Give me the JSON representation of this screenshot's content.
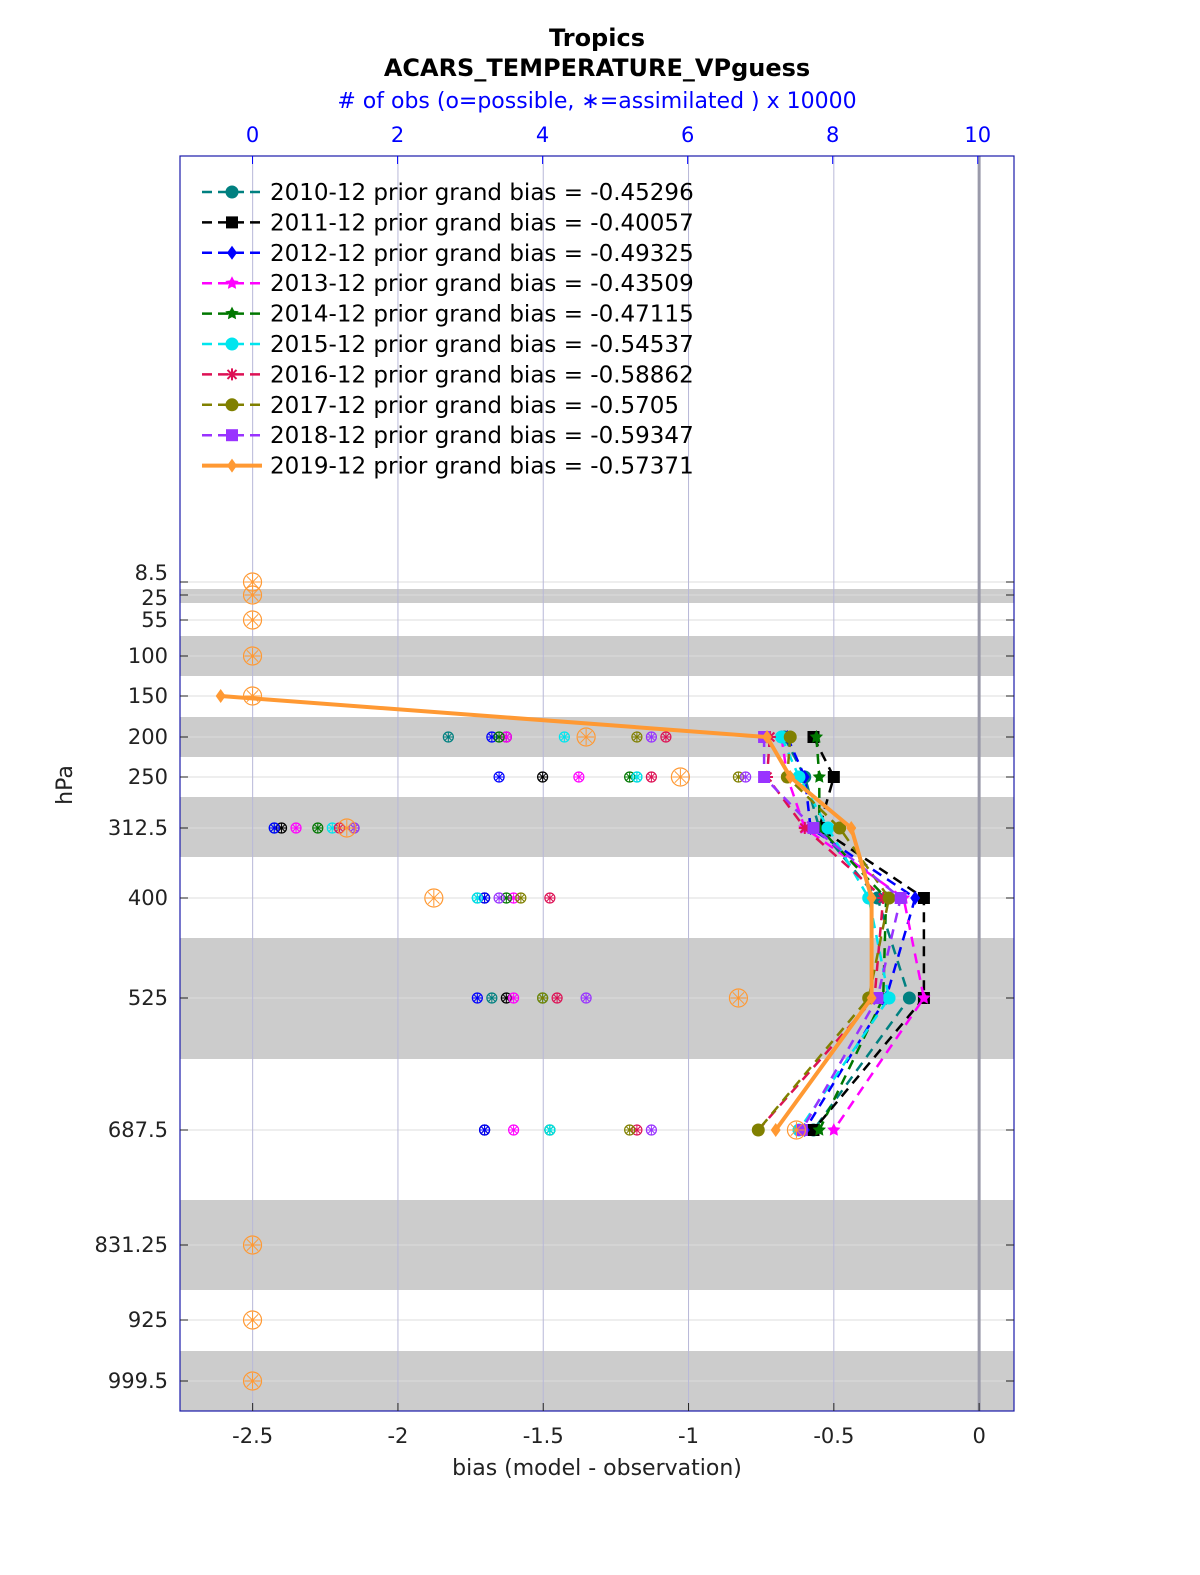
{
  "chart_data": {
    "type": "line",
    "title": "Tropics",
    "subtitle": "ACARS_TEMPERATURE_VPguess",
    "top_axis_label": "# of obs (o=possible, ∗=assimilated ) x 10000",
    "xlabel": "bias (model - observation)",
    "ylabel": "hPa",
    "xlim": [
      -2.75,
      0.12
    ],
    "x_ticks": [
      "-2.5",
      "-2",
      "-1.5",
      "-1",
      "-0.5",
      "0"
    ],
    "x_tick_values": [
      -2.5,
      -2,
      -1.5,
      -1,
      -0.5,
      0
    ],
    "top_xlim": [
      -1,
      10.5
    ],
    "top_ticks": [
      "0",
      "2",
      "4",
      "6",
      "8",
      "10"
    ],
    "top_tick_values": [
      0,
      2,
      4,
      6,
      8,
      10
    ],
    "y_levels": [
      "8.5",
      "25",
      "55",
      "100",
      "150",
      "200",
      "250",
      "312.5",
      "400",
      "525",
      "687.5",
      "831.25",
      "925",
      "999.5"
    ],
    "y_level_values": [
      8.5,
      25,
      55,
      100,
      150,
      200,
      250,
      312.5,
      400,
      525,
      687.5,
      831.25,
      925,
      999.5
    ],
    "grid": true,
    "legend_placement": "top-left",
    "series": [
      {
        "label": "2010-12 prior grand bias = -0.45296",
        "color": "#008080",
        "dash": "dashed",
        "marker": "circle",
        "points": [
          [
            -0.67,
            200
          ],
          [
            -0.6,
            250
          ],
          [
            -0.55,
            312.5
          ],
          [
            -0.35,
            400
          ],
          [
            -0.24,
            525
          ],
          [
            -0.57,
            687.5
          ]
        ],
        "obs_points": [
          [
            2.7,
            200
          ],
          [
            5.3,
            250
          ],
          [
            0.3,
            312.5
          ],
          [
            3.1,
            400
          ],
          [
            3.3,
            525
          ],
          [
            4.1,
            687.5
          ]
        ]
      },
      {
        "label": "2011-12 prior grand bias = -0.40057",
        "color": "#000000",
        "dash": "dashed",
        "marker": "square",
        "points": [
          [
            -0.57,
            200
          ],
          [
            -0.5,
            250
          ],
          [
            -0.55,
            312.5
          ],
          [
            -0.19,
            400
          ],
          [
            -0.19,
            525
          ],
          [
            -0.57,
            687.5
          ]
        ],
        "obs_points": [
          [
            3.5,
            200
          ],
          [
            4.0,
            250
          ],
          [
            0.4,
            312.5
          ],
          [
            3.2,
            400
          ],
          [
            3.5,
            525
          ],
          [
            3.2,
            687.5
          ]
        ]
      },
      {
        "label": "2012-12 prior grand bias = -0.49325",
        "color": "#0000ff",
        "dash": "dashed",
        "marker": "diamond",
        "points": [
          [
            -0.66,
            200
          ],
          [
            -0.6,
            250
          ],
          [
            -0.58,
            312.5
          ],
          [
            -0.22,
            400
          ],
          [
            -0.32,
            525
          ],
          [
            -0.6,
            687.5
          ]
        ],
        "obs_points": [
          [
            3.3,
            200
          ],
          [
            3.4,
            250
          ],
          [
            0.3,
            312.5
          ],
          [
            3.2,
            400
          ],
          [
            3.1,
            525
          ],
          [
            3.2,
            687.5
          ]
        ]
      },
      {
        "label": "2013-12 prior grand bias = -0.43509",
        "color": "#ff00ff",
        "dash": "dashed",
        "marker": "star",
        "points": [
          [
            -0.68,
            200
          ],
          [
            -0.66,
            250
          ],
          [
            -0.6,
            312.5
          ],
          [
            -0.26,
            400
          ],
          [
            -0.19,
            525
          ],
          [
            -0.5,
            687.5
          ]
        ],
        "obs_points": [
          [
            3.5,
            200
          ],
          [
            4.5,
            250
          ],
          [
            0.6,
            312.5
          ],
          [
            3.6,
            400
          ],
          [
            3.6,
            525
          ],
          [
            3.6,
            687.5
          ]
        ]
      },
      {
        "label": "2014-12 prior grand bias = -0.47115",
        "color": "#007700",
        "dash": "dashed",
        "marker": "hexagram",
        "points": [
          [
            -0.56,
            200
          ],
          [
            -0.55,
            250
          ],
          [
            -0.55,
            312.5
          ],
          [
            -0.32,
            400
          ],
          [
            -0.33,
            525
          ],
          [
            -0.55,
            687.5
          ]
        ],
        "obs_points": [
          [
            3.4,
            200
          ],
          [
            5.2,
            250
          ],
          [
            0.9,
            312.5
          ],
          [
            3.5,
            400
          ],
          [
            4.0,
            525
          ],
          [
            4.1,
            687.5
          ]
        ]
      },
      {
        "label": "2015-12 prior grand bias = -0.54537",
        "color": "#00e5ee",
        "dash": "dashed",
        "marker": "circle",
        "points": [
          [
            -0.68,
            200
          ],
          [
            -0.62,
            250
          ],
          [
            -0.52,
            312.5
          ],
          [
            -0.38,
            400
          ],
          [
            -0.31,
            525
          ],
          [
            -0.62,
            687.5
          ]
        ],
        "obs_points": [
          [
            4.3,
            200
          ],
          [
            5.3,
            250
          ],
          [
            1.1,
            312.5
          ],
          [
            3.1,
            400
          ],
          [
            4.0,
            525
          ],
          [
            4.1,
            687.5
          ]
        ]
      },
      {
        "label": "2016-12 prior grand bias = -0.58862",
        "color": "#dd1155",
        "dash": "dashed",
        "marker": "asterisk",
        "points": [
          [
            -0.72,
            200
          ],
          [
            -0.73,
            250
          ],
          [
            -0.6,
            312.5
          ],
          [
            -0.33,
            400
          ],
          [
            -0.36,
            525
          ],
          [
            -0.76,
            687.5
          ]
        ],
        "obs_points": [
          [
            5.7,
            200
          ],
          [
            5.5,
            250
          ],
          [
            1.2,
            312.5
          ],
          [
            4.1,
            400
          ],
          [
            4.2,
            525
          ],
          [
            5.3,
            687.5
          ]
        ]
      },
      {
        "label": "2017-12 prior grand bias = -0.5705",
        "color": "#808000",
        "dash": "dashed",
        "marker": "circle",
        "points": [
          [
            -0.65,
            200
          ],
          [
            -0.66,
            250
          ],
          [
            -0.48,
            312.5
          ],
          [
            -0.31,
            400
          ],
          [
            -0.38,
            525
          ],
          [
            -0.76,
            687.5
          ]
        ],
        "obs_points": [
          [
            5.3,
            200
          ],
          [
            6.7,
            250
          ],
          [
            1.4,
            312.5
          ],
          [
            3.7,
            400
          ],
          [
            4.0,
            525
          ],
          [
            5.2,
            687.5
          ]
        ]
      },
      {
        "label": "2018-12 prior grand bias = -0.59347",
        "color": "#9933ff",
        "dash": "dashed",
        "marker": "square",
        "points": [
          [
            -0.74,
            200
          ],
          [
            -0.74,
            250
          ],
          [
            -0.57,
            312.5
          ],
          [
            -0.27,
            400
          ],
          [
            -0.35,
            525
          ],
          [
            -0.61,
            687.5
          ]
        ],
        "obs_points": [
          [
            5.5,
            200
          ],
          [
            6.8,
            250
          ],
          [
            1.4,
            312.5
          ],
          [
            3.4,
            400
          ],
          [
            4.6,
            525
          ],
          [
            5.5,
            687.5
          ]
        ]
      },
      {
        "label": "2019-12 prior grand bias = -0.57371",
        "color": "#ff9933",
        "dash": "solid",
        "marker": "diamond",
        "points": [
          [
            -2.61,
            150
          ],
          [
            -0.73,
            200
          ],
          [
            -0.65,
            250
          ],
          [
            -0.44,
            312.5
          ],
          [
            -0.37,
            400
          ],
          [
            -0.37,
            525
          ],
          [
            -0.7,
            687.5
          ]
        ],
        "obs_points": [
          [
            0,
            8.5
          ],
          [
            0,
            25
          ],
          [
            0,
            55
          ],
          [
            0,
            100
          ],
          [
            0,
            150
          ],
          [
            4.6,
            200
          ],
          [
            5.9,
            250
          ],
          [
            1.3,
            312.5
          ],
          [
            2.5,
            400
          ],
          [
            6.7,
            525
          ],
          [
            7.5,
            687.5
          ],
          [
            0,
            831.25
          ],
          [
            0,
            925
          ],
          [
            0,
            999.5
          ]
        ]
      }
    ]
  }
}
